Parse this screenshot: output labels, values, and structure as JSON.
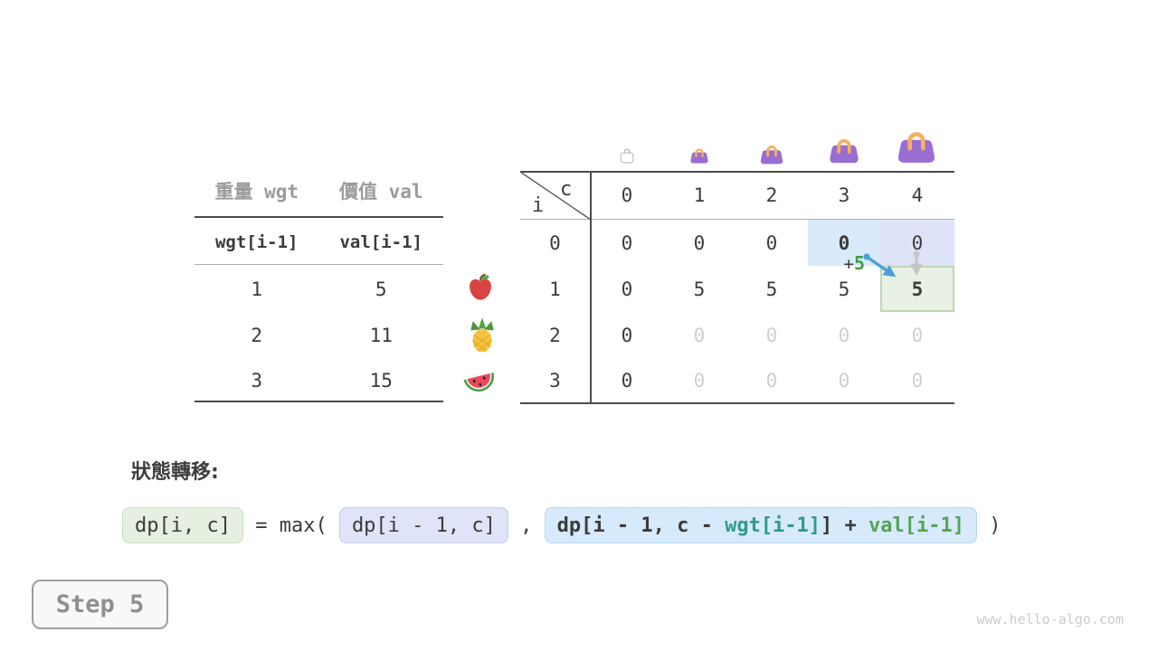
{
  "items_table": {
    "headers": [
      "重量 wgt",
      "價值 val"
    ],
    "subheaders": [
      "wgt[i-1]",
      "val[i-1]"
    ],
    "rows": [
      [
        "1",
        "5"
      ],
      [
        "2",
        "11"
      ],
      [
        "3",
        "15"
      ]
    ],
    "fruit_icons": [
      "apple-icon",
      "pineapple-icon",
      "watermelon-icon"
    ]
  },
  "dp_table": {
    "corner": {
      "col_var": "c",
      "row_var": "i"
    },
    "col_headers": [
      "0",
      "1",
      "2",
      "3",
      "4"
    ],
    "row_headers": [
      "0",
      "1",
      "2",
      "3"
    ],
    "cells": [
      [
        {
          "v": "0"
        },
        {
          "v": "0"
        },
        {
          "v": "0"
        },
        {
          "v": "0",
          "bold": true,
          "hl": "blue"
        },
        {
          "v": "0",
          "hl": "lavender"
        }
      ],
      [
        {
          "v": "0"
        },
        {
          "v": "5"
        },
        {
          "v": "5"
        },
        {
          "v": "5"
        },
        {
          "v": "5",
          "bold": true,
          "hl": "green"
        }
      ],
      [
        {
          "v": "0"
        },
        {
          "v": "0",
          "ghost": true
        },
        {
          "v": "0",
          "ghost": true
        },
        {
          "v": "0",
          "ghost": true
        },
        {
          "v": "0",
          "ghost": true
        }
      ],
      [
        {
          "v": "0"
        },
        {
          "v": "0",
          "ghost": true
        },
        {
          "v": "0",
          "ghost": true
        },
        {
          "v": "0",
          "ghost": true
        },
        {
          "v": "0",
          "ghost": true
        }
      ]
    ],
    "annotation": {
      "plus": "+",
      "value": "5"
    },
    "bag_icons": [
      "bag-outline-icon",
      "bag-small-icon",
      "bag-medium-icon",
      "bag-large-icon",
      "bag-xlarge-icon"
    ]
  },
  "transition": {
    "title": "狀態轉移:",
    "lhs": "dp[i, c]",
    "equals_max": " = max( ",
    "arg1": "dp[i - 1, c]",
    "comma": " , ",
    "arg2_parts": {
      "p1": "dp[i - 1, c - ",
      "wgt": "wgt[i-1]",
      "p2": "] + ",
      "val": "val[i-1]"
    },
    "close_paren": " )"
  },
  "step_badge": "Step 5",
  "watermark": "www.hello-algo.com",
  "colors": {
    "teal_code": "#2f9a8f",
    "green_code": "#55a455",
    "highlight_blue": "#d9eafb",
    "highlight_lavender": "#dfe3f7",
    "highlight_green": "#e9f0e4",
    "arrow_blue": "#4aa0dc",
    "arrow_gray": "#c6c6c6",
    "bag_purple": "#9a6dd2",
    "bag_handle": "#f5b15c"
  }
}
